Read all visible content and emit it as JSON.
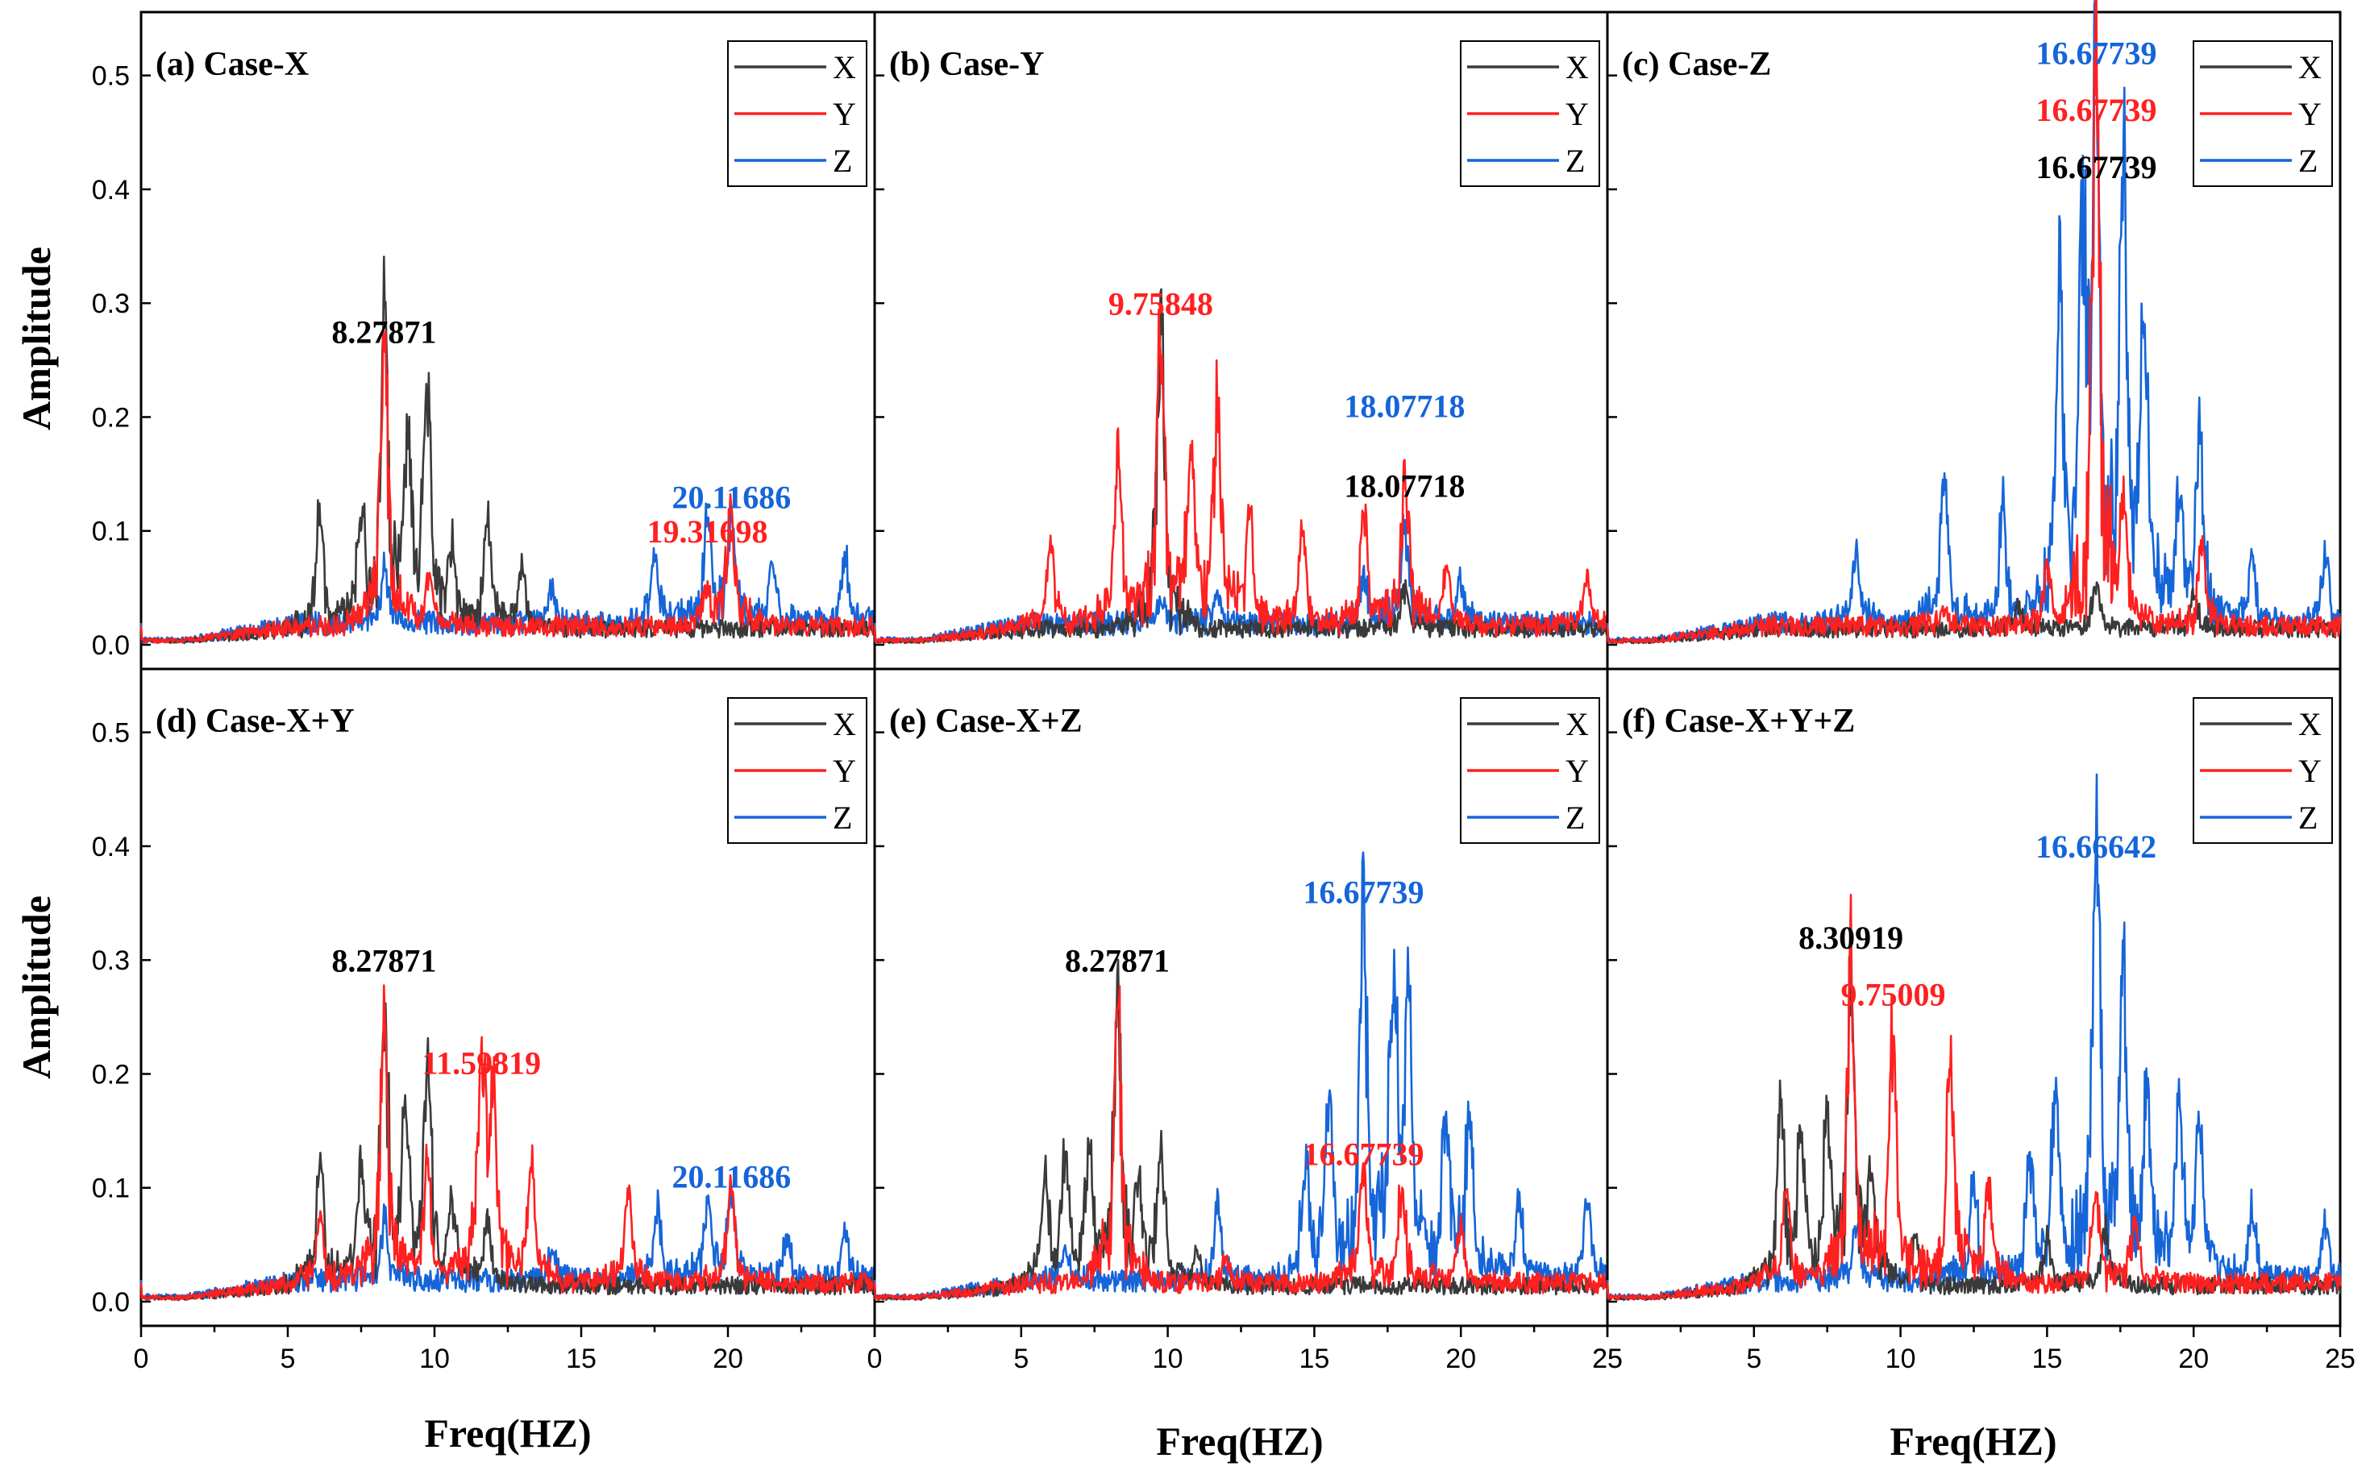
{
  "figure": {
    "xlabel": "Freq(HZ)",
    "ylabel": "Amplitude",
    "colors": {
      "X": "#3a3a3a",
      "Y": "#ff2020",
      "Z": "#1565d8"
    },
    "yticks": [
      "0.0",
      "0.1",
      "0.2",
      "0.3",
      "0.4",
      "0.5"
    ],
    "xticks_first": [
      "0",
      "5",
      "10",
      "15",
      "20"
    ],
    "xticks_middle": [
      "0",
      "5",
      "10",
      "15",
      "20",
      "25"
    ],
    "xticks_last": [
      "25",
      "5",
      "10",
      "15",
      "20",
      "25"
    ]
  },
  "chart_data": [
    {
      "type": "line",
      "title": "(a) Case-X",
      "xlim": [
        0,
        25
      ],
      "ylim": [
        0,
        0.55
      ],
      "legend": [
        "X",
        "Y",
        "Z"
      ],
      "legend_position": "top-right",
      "series": [
        {
          "name": "X",
          "peaks": [
            [
              6.1,
              0.1
            ],
            [
              7.5,
              0.09
            ],
            [
              8.28,
              0.245
            ],
            [
              9.1,
              0.15
            ],
            [
              9.76,
              0.19
            ],
            [
              10.6,
              0.06
            ],
            [
              11.8,
              0.09
            ],
            [
              13.0,
              0.05
            ]
          ]
        },
        {
          "name": "Y",
          "peaks": [
            [
              8.28,
              0.265
            ],
            [
              9.8,
              0.04
            ],
            [
              19.3,
              0.03
            ],
            [
              20.1,
              0.108
            ]
          ]
        },
        {
          "name": "Z",
          "peaks": [
            [
              8.3,
              0.05
            ],
            [
              14.0,
              0.03
            ],
            [
              17.5,
              0.06
            ],
            [
              19.3,
              0.09
            ],
            [
              20.12,
              0.095
            ],
            [
              21.5,
              0.05
            ],
            [
              24.0,
              0.055
            ]
          ]
        }
      ],
      "annotations": [
        {
          "text": "8.27871",
          "series": "X",
          "x": 8.28,
          "y": 0.265
        },
        {
          "text": "19.31698",
          "series": "Y",
          "x": 19.3,
          "y": 0.09
        },
        {
          "text": "20.11686",
          "series": "Z",
          "x": 20.12,
          "y": 0.12
        }
      ]
    },
    {
      "type": "line",
      "title": "(b) Case-Y",
      "xlim": [
        0,
        25
      ],
      "ylim": [
        0,
        0.55
      ],
      "legend": [
        "X",
        "Y",
        "Z"
      ],
      "legend_position": "top-right",
      "series": [
        {
          "name": "X",
          "peaks": [
            [
              9.76,
              0.278
            ],
            [
              18.1,
              0.035
            ]
          ]
        },
        {
          "name": "Y",
          "peaks": [
            [
              6.0,
              0.07
            ],
            [
              8.3,
              0.14
            ],
            [
              9.76,
              0.25
            ],
            [
              10.8,
              0.14
            ],
            [
              11.7,
              0.195
            ],
            [
              12.8,
              0.09
            ],
            [
              14.6,
              0.08
            ],
            [
              16.7,
              0.1
            ],
            [
              18.1,
              0.125
            ],
            [
              19.5,
              0.05
            ],
            [
              24.3,
              0.04
            ]
          ]
        },
        {
          "name": "Z",
          "peaks": [
            [
              9.8,
              0.02
            ],
            [
              11.7,
              0.025
            ],
            [
              16.7,
              0.04
            ],
            [
              18.08,
              0.08
            ],
            [
              20.0,
              0.04
            ]
          ]
        }
      ],
      "annotations": [
        {
          "text": "9.75848",
          "series": "Y",
          "x": 9.76,
          "y": 0.29
        },
        {
          "text": "18.07718",
          "series": "Z",
          "x": 18.08,
          "y": 0.2
        },
        {
          "text": "18.07718",
          "series": "X",
          "x": 18.08,
          "y": 0.13
        }
      ]
    },
    {
      "type": "line",
      "title": "(c) Case-Z",
      "xlim": [
        0,
        25
      ],
      "ylim": [
        0,
        0.55
      ],
      "legend": [
        "X",
        "Y",
        "Z"
      ],
      "legend_position": "top-right",
      "series": [
        {
          "name": "X",
          "peaks": [
            [
              14.0,
              0.02
            ],
            [
              16.67,
              0.04
            ],
            [
              20.0,
              0.03
            ]
          ]
        },
        {
          "name": "Y",
          "peaks": [
            [
              11.5,
              0.02
            ],
            [
              15.0,
              0.05
            ],
            [
              16.67,
              0.488
            ],
            [
              17.6,
              0.1
            ],
            [
              20.3,
              0.07
            ]
          ]
        },
        {
          "name": "Z",
          "peaks": [
            [
              8.5,
              0.06
            ],
            [
              11.5,
              0.13
            ],
            [
              13.5,
              0.1
            ],
            [
              15.4,
              0.285
            ],
            [
              16.2,
              0.3
            ],
            [
              16.67,
              0.455
            ],
            [
              17.6,
              0.37
            ],
            [
              18.3,
              0.26
            ],
            [
              19.5,
              0.1
            ],
            [
              20.2,
              0.16
            ],
            [
              22.0,
              0.06
            ],
            [
              24.5,
              0.06
            ]
          ]
        }
      ],
      "annotations": [
        {
          "text": "16.67739",
          "series": "Z",
          "x": 16.68,
          "y": 0.51
        },
        {
          "text": "16.67739",
          "series": "Y",
          "x": 16.68,
          "y": 0.46
        },
        {
          "text": "16.67739",
          "series": "X",
          "x": 16.68,
          "y": 0.41
        }
      ]
    },
    {
      "type": "line",
      "title": "(d) Case-X+Y",
      "xlim": [
        0,
        25
      ],
      "ylim": [
        0,
        0.55
      ],
      "legend": [
        "X",
        "Y",
        "Z"
      ],
      "legend_position": "top-right",
      "series": [
        {
          "name": "X",
          "peaks": [
            [
              6.1,
              0.11
            ],
            [
              7.5,
              0.09
            ],
            [
              8.28,
              0.23
            ],
            [
              9.0,
              0.13
            ],
            [
              9.76,
              0.17
            ],
            [
              10.6,
              0.07
            ],
            [
              11.8,
              0.06
            ]
          ]
        },
        {
          "name": "Y",
          "peaks": [
            [
              6.1,
              0.06
            ],
            [
              8.28,
              0.245
            ],
            [
              9.76,
              0.1
            ],
            [
              11.6,
              0.18
            ],
            [
              12.0,
              0.15
            ],
            [
              13.3,
              0.1
            ],
            [
              16.6,
              0.08
            ],
            [
              20.1,
              0.09
            ]
          ]
        },
        {
          "name": "Z",
          "peaks": [
            [
              8.3,
              0.05
            ],
            [
              14.0,
              0.03
            ],
            [
              17.6,
              0.06
            ],
            [
              19.3,
              0.07
            ],
            [
              20.12,
              0.07
            ],
            [
              22.0,
              0.04
            ],
            [
              24.0,
              0.04
            ]
          ]
        }
      ],
      "annotations": [
        {
          "text": "8.27871",
          "series": "X",
          "x": 8.28,
          "y": 0.29
        },
        {
          "text": "11.59819",
          "series": "Y",
          "x": 11.6,
          "y": 0.2
        },
        {
          "text": "20.11686",
          "series": "Z",
          "x": 20.12,
          "y": 0.1
        }
      ]
    },
    {
      "type": "line",
      "title": "(e) Case-X+Z",
      "xlim": [
        0,
        25
      ],
      "ylim": [
        0,
        0.55
      ],
      "legend": [
        "X",
        "Y",
        "Z"
      ],
      "legend_position": "top-right",
      "series": [
        {
          "name": "X",
          "peaks": [
            [
              5.8,
              0.09
            ],
            [
              6.5,
              0.1
            ],
            [
              7.3,
              0.1
            ],
            [
              8.28,
              0.245
            ],
            [
              9.0,
              0.08
            ],
            [
              9.76,
              0.11
            ],
            [
              11.0,
              0.03
            ]
          ]
        },
        {
          "name": "Y",
          "peaks": [
            [
              8.28,
              0.25
            ],
            [
              12.0,
              0.02
            ],
            [
              16.67,
              0.1
            ],
            [
              18.0,
              0.08
            ],
            [
              20.0,
              0.05
            ]
          ]
        },
        {
          "name": "Z",
          "peaks": [
            [
              6.5,
              0.03
            ],
            [
              11.7,
              0.06
            ],
            [
              14.7,
              0.1
            ],
            [
              15.5,
              0.15
            ],
            [
              16.67,
              0.32
            ],
            [
              17.7,
              0.25
            ],
            [
              18.2,
              0.22
            ],
            [
              19.5,
              0.15
            ],
            [
              20.3,
              0.14
            ],
            [
              22.0,
              0.07
            ],
            [
              24.3,
              0.07
            ]
          ]
        }
      ],
      "annotations": [
        {
          "text": "8.27871",
          "series": "X",
          "x": 8.28,
          "y": 0.29
        },
        {
          "text": "16.67739",
          "series": "Z",
          "x": 16.68,
          "y": 0.35
        },
        {
          "text": "16.67739",
          "series": "Y",
          "x": 16.68,
          "y": 0.12
        }
      ]
    },
    {
      "type": "line",
      "title": "(f) Case-X+Y+Z",
      "xlim": [
        0,
        25
      ],
      "ylim": [
        0,
        0.55
      ],
      "legend": [
        "X",
        "Y",
        "Z"
      ],
      "legend_position": "top-right",
      "series": [
        {
          "name": "X",
          "peaks": [
            [
              5.9,
              0.14
            ],
            [
              6.6,
              0.12
            ],
            [
              7.5,
              0.13
            ],
            [
              8.31,
              0.26
            ],
            [
              9.0,
              0.08
            ],
            [
              10.5,
              0.04
            ],
            [
              15.0,
              0.04
            ],
            [
              17.0,
              0.05
            ]
          ]
        },
        {
          "name": "Y",
          "peaks": [
            [
              6.1,
              0.08
            ],
            [
              8.3,
              0.275
            ],
            [
              9.75,
              0.225
            ],
            [
              11.7,
              0.19
            ],
            [
              13.0,
              0.08
            ],
            [
              16.67,
              0.08
            ],
            [
              18.0,
              0.05
            ]
          ]
        },
        {
          "name": "Z",
          "peaks": [
            [
              8.5,
              0.05
            ],
            [
              12.5,
              0.09
            ],
            [
              14.4,
              0.1
            ],
            [
              15.3,
              0.15
            ],
            [
              16.67,
              0.37
            ],
            [
              17.6,
              0.24
            ],
            [
              18.4,
              0.16
            ],
            [
              19.5,
              0.14
            ],
            [
              20.2,
              0.14
            ],
            [
              22.0,
              0.06
            ],
            [
              24.5,
              0.05
            ]
          ]
        }
      ],
      "annotations": [
        {
          "text": "8.30919",
          "series": "X",
          "x": 8.31,
          "y": 0.31
        },
        {
          "text": "9.75009",
          "series": "Y",
          "x": 9.75,
          "y": 0.26
        },
        {
          "text": "16.66642",
          "series": "Z",
          "x": 16.67,
          "y": 0.39
        }
      ]
    }
  ]
}
